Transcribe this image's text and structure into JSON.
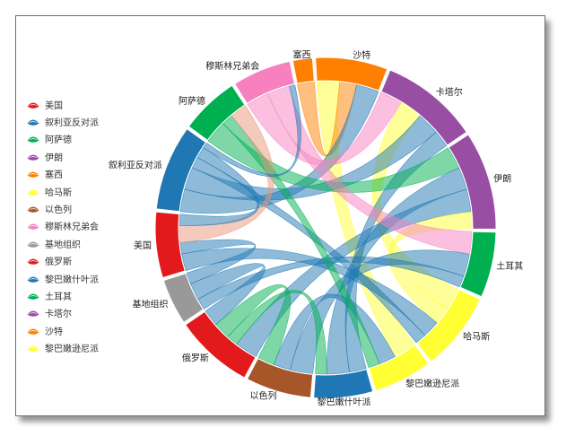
{
  "legend": {
    "items": [
      {
        "label": "美国",
        "color": "#e31a1c"
      },
      {
        "label": "叙利亚反对派",
        "color": "#1f78b4"
      },
      {
        "label": "阿萨德",
        "color": "#00b050"
      },
      {
        "label": "伊朗",
        "color": "#984ea3"
      },
      {
        "label": "塞西",
        "color": "#ff7f00"
      },
      {
        "label": "哈马斯",
        "color": "#ffff33"
      },
      {
        "label": "以色列",
        "color": "#a65628"
      },
      {
        "label": "穆斯林兄弟会",
        "color": "#f781bf"
      },
      {
        "label": "基地组织",
        "color": "#999999"
      },
      {
        "label": "俄罗斯",
        "color": "#e31a1c"
      },
      {
        "label": "黎巴嫩什叶派",
        "color": "#1f78b4"
      },
      {
        "label": "土耳其",
        "color": "#00b050"
      },
      {
        "label": "卡塔尔",
        "color": "#984ea3"
      },
      {
        "label": "沙特",
        "color": "#ff7f00"
      },
      {
        "label": "黎巴嫩逊尼派",
        "color": "#ffff33"
      }
    ]
  },
  "chord": {
    "nodes": [
      {
        "id": "saudi",
        "label": "沙特",
        "color": "#ff7f00"
      },
      {
        "id": "qatar",
        "label": "卡塔尔",
        "color": "#984ea3"
      },
      {
        "id": "iran",
        "label": "伊朗",
        "color": "#984ea3"
      },
      {
        "id": "turkey",
        "label": "土耳其",
        "color": "#00b050"
      },
      {
        "id": "hamas",
        "label": "哈马斯",
        "color": "#ffff33"
      },
      {
        "id": "lbsunni",
        "label": "黎巴嫩逊尼派",
        "color": "#ffff33"
      },
      {
        "id": "lbshia",
        "label": "黎巴嫩什叶派",
        "color": "#1f78b4"
      },
      {
        "id": "israel",
        "label": "以色列",
        "color": "#a65628"
      },
      {
        "id": "russia",
        "label": "俄罗斯",
        "color": "#e31a1c"
      },
      {
        "id": "alqaeda",
        "label": "基地组织",
        "color": "#999999"
      },
      {
        "id": "usa",
        "label": "美国",
        "color": "#e31a1c"
      },
      {
        "id": "syrianopp",
        "label": "叙利亚反对派",
        "color": "#1f78b4"
      },
      {
        "id": "assad",
        "label": "阿萨德",
        "color": "#00b050"
      },
      {
        "id": "mb",
        "label": "穆斯林兄弟会",
        "color": "#f781bf"
      },
      {
        "id": "sisi",
        "label": "塞西",
        "color": "#ff7f00"
      }
    ],
    "links": [
      {
        "source": "saudi",
        "target": "lbsunni",
        "value": 2,
        "color": "#ffff33"
      },
      {
        "source": "saudi",
        "target": "sisi",
        "value": 1.5,
        "color": "#ff7f00"
      },
      {
        "source": "saudi",
        "target": "syrianopp",
        "value": 2,
        "color": "#1f78b4"
      },
      {
        "source": "qatar",
        "target": "mb",
        "value": 2,
        "color": "#f781bf"
      },
      {
        "source": "qatar",
        "target": "hamas",
        "value": 2,
        "color": "#ffff33"
      },
      {
        "source": "qatar",
        "target": "syrianopp",
        "value": 2,
        "color": "#1f78b4"
      },
      {
        "source": "qatar",
        "target": "lbshia",
        "value": 1.5,
        "color": "#1f78b4"
      },
      {
        "source": "iran",
        "target": "assad",
        "value": 2,
        "color": "#00b050"
      },
      {
        "source": "iran",
        "target": "lbshia",
        "value": 2,
        "color": "#1f78b4"
      },
      {
        "source": "iran",
        "target": "russia",
        "value": 2,
        "color": "#1f78b4"
      },
      {
        "source": "iran",
        "target": "hamas",
        "value": 1.5,
        "color": "#ffff33"
      },
      {
        "source": "turkey",
        "target": "mb",
        "value": 2,
        "color": "#f781bf"
      },
      {
        "source": "turkey",
        "target": "israel",
        "value": 2,
        "color": "#1f78b4"
      },
      {
        "source": "turkey",
        "target": "alqaeda",
        "value": 1,
        "color": "#1f78b4"
      },
      {
        "source": "hamas",
        "target": "usa",
        "value": 1.5,
        "color": "#1f78b4"
      },
      {
        "source": "hamas",
        "target": "syrianopp",
        "value": 1,
        "color": "#1f78b4"
      },
      {
        "source": "lbsunni",
        "target": "israel",
        "value": 1.5,
        "color": "#1f78b4"
      },
      {
        "source": "lbsunni",
        "target": "assad",
        "value": 1,
        "color": "#00b050"
      },
      {
        "source": "lbshia",
        "target": "russia",
        "value": 1,
        "color": "#00b050"
      },
      {
        "source": "israel",
        "target": "russia",
        "value": 1.5,
        "color": "#00b050"
      },
      {
        "source": "russia",
        "target": "alqaeda",
        "value": 1.5,
        "color": "#1f78b4"
      },
      {
        "source": "alqaeda",
        "target": "usa",
        "value": 1,
        "color": "#1f78b4"
      },
      {
        "source": "usa",
        "target": "assad",
        "value": 1.5,
        "color": "#e9967a"
      },
      {
        "source": "usa",
        "target": "syrianopp",
        "value": 1,
        "color": "#1f78b4"
      },
      {
        "source": "syrianopp",
        "target": "mb",
        "value": 0.5,
        "color": "#1f78b4"
      }
    ]
  }
}
